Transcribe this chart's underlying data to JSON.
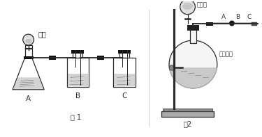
{
  "fig_width": 3.75,
  "fig_height": 1.97,
  "dpi": 100,
  "bg_color": "#ffffff",
  "line_color": "#2a2a2a",
  "label_fig1": "图 1",
  "label_fig2": "图2",
  "label_A1": "A",
  "label_B1": "B",
  "label_C1": "C",
  "label_hcl": "盐酸",
  "label_conc_hcl": "浓盐酸",
  "label_kmno4": "高锰酸钾",
  "label_A2": "A",
  "label_B2": "B",
  "label_C2": "C"
}
